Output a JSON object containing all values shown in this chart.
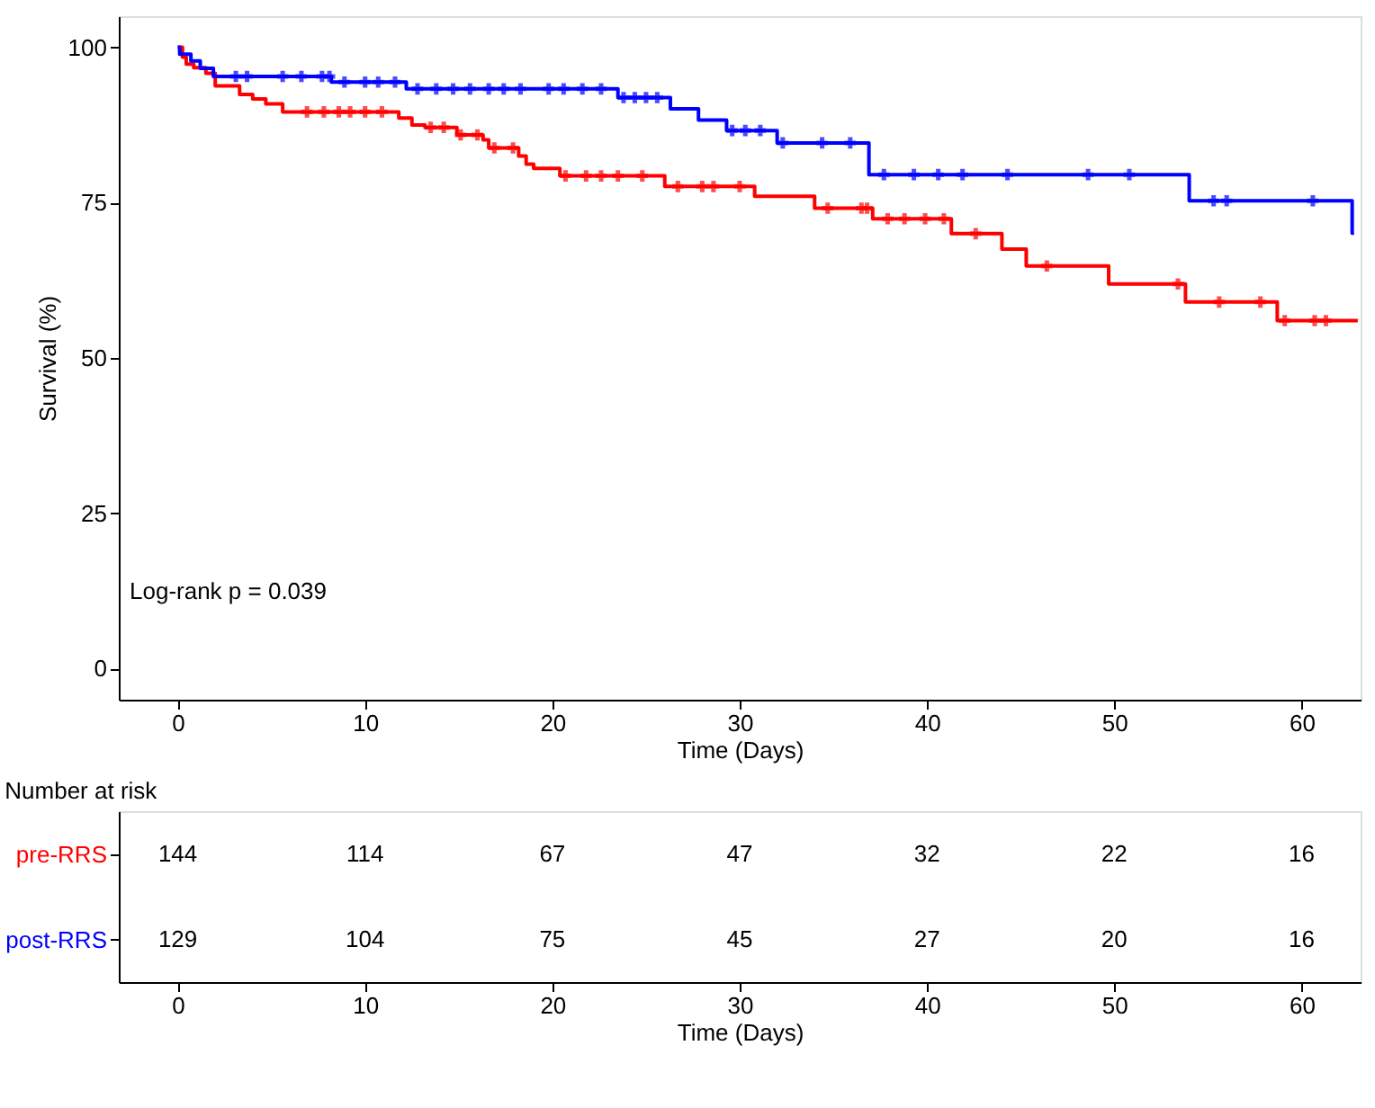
{
  "chart_data": [
    {
      "type": "step",
      "xlabel": "Time (Days)",
      "ylabel": "Survival (%)",
      "xlim": [
        -3.15,
        63.15
      ],
      "xticks": [
        0,
        10,
        20,
        30,
        40,
        50,
        60
      ],
      "ylim": [
        -5,
        105
      ],
      "yticks": [
        0,
        25,
        50,
        75,
        100
      ],
      "grid": false,
      "legend": false,
      "line_style": "solid",
      "annotations": [
        "Log-rank p = 0.039"
      ],
      "series": [
        {
          "color": "#ff0000",
          "x": [
            0,
            0.25,
            0.45,
            0.85,
            1.5,
            2.0,
            3.3,
            4.0,
            4.7,
            5.6,
            11.8,
            12.5,
            13.2,
            14.9,
            16.3,
            16.6,
            18.2,
            18.6,
            19.0,
            20.4,
            26.0,
            30.8,
            34.0,
            37.1,
            41.3,
            44.0,
            45.3,
            49.7,
            53.8,
            58.7,
            63
          ],
          "values": [
            100,
            98.4,
            97.3,
            96.7,
            95.8,
            93.8,
            92.4,
            91.7,
            90.9,
            89.6,
            88.6,
            87.5,
            87.1,
            85.9,
            85.1,
            83.8,
            82.5,
            81.2,
            80.5,
            79.3,
            77.6,
            76.0,
            74.1,
            72.4,
            70.0,
            67.5,
            64.8,
            61.9,
            59.0,
            56.0,
            56.0
          ]
        },
        {
          "color": "#0000ff",
          "x": [
            0,
            0.1,
            0.7,
            1.2,
            1.9,
            8.2,
            12.2,
            23.5,
            26.3,
            27.8,
            29.3,
            32.0,
            36.9,
            54.0,
            62.7,
            62.8
          ],
          "values": [
            100,
            98.9,
            97.8,
            96.6,
            95.3,
            94.4,
            93.3,
            91.9,
            90.1,
            88.3,
            86.6,
            84.6,
            79.5,
            75.3,
            70.1,
            70.1
          ]
        },
        {
          "type": "scatter",
          "marker": "cross",
          "color": "#ff0000",
          "x": [
            6.9,
            7.8,
            8.6,
            9.2,
            10.0,
            10.9,
            13.5,
            14.2,
            15.1,
            16.0,
            16.9,
            17.9,
            20.7,
            21.8,
            22.6,
            23.5,
            24.8,
            26.7,
            28.0,
            28.6,
            30.0,
            34.7,
            36.5,
            36.8,
            37.9,
            38.8,
            39.9,
            40.9,
            42.6,
            46.4,
            53.4,
            55.6,
            57.8,
            59.1,
            60.7,
            61.3
          ],
          "values": [
            89.6,
            89.6,
            89.6,
            89.6,
            89.6,
            89.6,
            87.1,
            87.1,
            85.9,
            85.9,
            83.8,
            83.8,
            79.3,
            79.3,
            79.3,
            79.3,
            79.3,
            77.6,
            77.6,
            77.6,
            77.6,
            74.1,
            74.1,
            74.1,
            72.4,
            72.4,
            72.4,
            72.4,
            70.0,
            64.8,
            61.9,
            59.0,
            59.0,
            56.0,
            56.0,
            56.0
          ]
        },
        {
          "type": "scatter",
          "marker": "cross",
          "color": "#0000ff",
          "x": [
            3.1,
            3.7,
            5.6,
            6.6,
            7.7,
            8.1,
            8.9,
            10.0,
            10.7,
            11.6,
            12.8,
            13.8,
            14.7,
            15.6,
            16.6,
            17.4,
            18.3,
            19.8,
            20.6,
            21.6,
            22.6,
            23.8,
            24.4,
            25.0,
            25.6,
            29.6,
            30.3,
            31.1,
            32.3,
            34.4,
            35.9,
            37.7,
            39.3,
            40.6,
            41.9,
            44.3,
            48.6,
            50.8,
            55.3,
            56.0,
            60.6
          ],
          "values": [
            95.3,
            95.3,
            95.3,
            95.3,
            95.3,
            95.3,
            94.4,
            94.4,
            94.4,
            94.4,
            93.3,
            93.3,
            93.3,
            93.3,
            93.3,
            93.3,
            93.3,
            93.3,
            93.3,
            93.3,
            93.3,
            91.9,
            91.9,
            91.9,
            91.9,
            86.6,
            86.6,
            86.6,
            84.6,
            84.6,
            84.6,
            79.5,
            79.5,
            79.5,
            79.5,
            79.5,
            79.5,
            79.5,
            75.3,
            75.3,
            75.3
          ]
        }
      ]
    },
    {
      "type": "heatmap",
      "title": "Number at risk",
      "xlabel": "Time (Days)",
      "categories": [
        "0",
        "10",
        "20",
        "30",
        "40",
        "50",
        "60"
      ],
      "y_categories": [
        "pre-RRS",
        "post-RRS"
      ],
      "colors": [
        "#ff0000",
        "#0000ff"
      ],
      "data_labels": true,
      "cells": [
        [
          144,
          114,
          67,
          47,
          32,
          22,
          16
        ],
        [
          129,
          104,
          75,
          45,
          27,
          20,
          16
        ]
      ]
    }
  ]
}
